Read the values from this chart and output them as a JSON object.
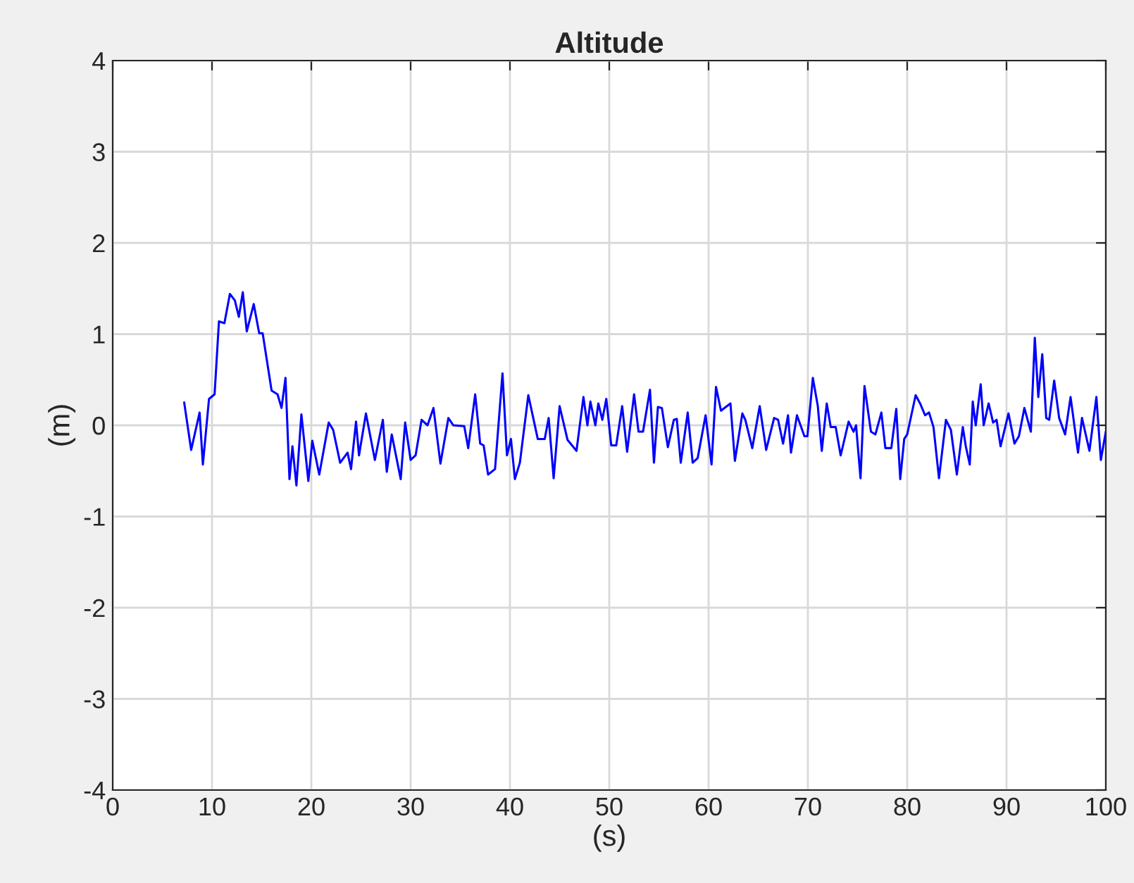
{
  "chart_data": {
    "type": "line",
    "title": "Altitude",
    "xlabel": "(s)",
    "ylabel": "(m)",
    "xlim": [
      0,
      100
    ],
    "xticks": [
      0,
      10,
      20,
      30,
      40,
      50,
      60,
      70,
      80,
      90,
      100
    ],
    "ylim": [
      -4,
      4
    ],
    "yticks": [
      -4,
      -3,
      -2,
      -1,
      0,
      1,
      2,
      3,
      4
    ],
    "grid": true,
    "marker": "none",
    "line_style": "solid",
    "x": [
      7.2,
      7.9,
      8.75,
      9.08,
      9.7,
      10.26,
      10.7,
      11.25,
      11.8,
      12.3,
      12.7,
      13.1,
      13.5,
      14.2,
      14.75,
      15.1,
      16.0,
      16.6,
      17.0,
      17.4,
      17.8,
      18.1,
      18.5,
      19.0,
      19.7,
      20.1,
      20.8,
      21.75,
      22.2,
      22.9,
      23.65,
      24.0,
      24.5,
      24.8,
      25.5,
      26.4,
      27.2,
      27.6,
      28.1,
      29.0,
      29.45,
      30.0,
      30.5,
      31.1,
      31.7,
      32.3,
      33.0,
      33.8,
      34.3,
      35.4,
      35.8,
      36.5,
      37.0,
      37.35,
      37.8,
      38.5,
      39.25,
      39.7,
      40.1,
      40.5,
      41.0,
      41.85,
      42.8,
      43.5,
      43.9,
      44.4,
      45.0,
      45.8,
      46.7,
      47.4,
      47.8,
      48.1,
      48.6,
      48.9,
      49.3,
      49.7,
      50.2,
      50.7,
      51.3,
      51.8,
      52.5,
      52.95,
      53.4,
      54.1,
      54.5,
      54.9,
      55.3,
      55.9,
      56.5,
      56.8,
      57.2,
      57.9,
      58.4,
      58.9,
      59.7,
      60.3,
      60.75,
      61.25,
      62.2,
      62.65,
      63.4,
      63.7,
      64.4,
      65.15,
      65.8,
      66.6,
      67.0,
      67.5,
      68.0,
      68.3,
      68.9,
      69.65,
      69.95,
      70.5,
      71.0,
      71.4,
      71.9,
      72.3,
      72.8,
      73.3,
      74.1,
      74.6,
      74.85,
      75.3,
      75.7,
      76.35,
      76.8,
      77.4,
      77.8,
      78.4,
      78.9,
      79.3,
      79.7,
      80.0,
      80.85,
      81.3,
      81.8,
      82.2,
      82.65,
      83.2,
      83.9,
      84.4,
      85.0,
      85.6,
      85.9,
      86.3,
      86.6,
      86.9,
      87.4,
      87.7,
      88.2,
      88.65,
      89.0,
      89.4,
      90.2,
      90.8,
      91.25,
      91.8,
      92.45,
      92.85,
      93.2,
      93.6,
      94.0,
      94.3,
      94.8,
      95.3,
      95.9,
      96.45,
      97.2,
      97.6,
      98.35,
      99.05,
      99.5,
      100
    ],
    "series": [
      {
        "color": "#0000ff",
        "values": [
          0.25,
          -0.27,
          0.14,
          -0.43,
          0.29,
          0.34,
          1.14,
          1.12,
          1.44,
          1.37,
          1.19,
          1.46,
          1.03,
          1.33,
          1.01,
          1.01,
          0.38,
          0.34,
          0.19,
          0.52,
          -0.59,
          -0.23,
          -0.66,
          0.12,
          -0.61,
          -0.17,
          -0.54,
          0.03,
          -0.05,
          -0.41,
          -0.3,
          -0.48,
          0.04,
          -0.33,
          0.13,
          -0.38,
          0.06,
          -0.51,
          -0.1,
          -0.59,
          0.03,
          -0.38,
          -0.33,
          0.06,
          0.0,
          0.19,
          -0.42,
          0.08,
          0.0,
          -0.01,
          -0.25,
          0.34,
          -0.2,
          -0.22,
          -0.54,
          -0.48,
          0.57,
          -0.33,
          -0.15,
          -0.59,
          -0.41,
          0.33,
          -0.15,
          -0.15,
          0.08,
          -0.58,
          0.21,
          -0.16,
          -0.28,
          0.31,
          0.0,
          0.26,
          0.0,
          0.24,
          0.06,
          0.29,
          -0.22,
          -0.22,
          0.21,
          -0.29,
          0.34,
          -0.07,
          -0.07,
          0.39,
          -0.41,
          0.2,
          0.19,
          -0.24,
          0.06,
          0.07,
          -0.41,
          0.14,
          -0.41,
          -0.36,
          0.11,
          -0.43,
          0.42,
          0.16,
          0.24,
          -0.39,
          0.13,
          0.06,
          -0.25,
          0.21,
          -0.27,
          0.08,
          0.06,
          -0.2,
          0.11,
          -0.3,
          0.11,
          -0.12,
          -0.12,
          0.52,
          0.21,
          -0.28,
          0.24,
          -0.02,
          -0.02,
          -0.33,
          0.04,
          -0.07,
          0.0,
          -0.58,
          0.43,
          -0.07,
          -0.1,
          0.14,
          -0.25,
          -0.25,
          0.18,
          -0.59,
          -0.15,
          -0.1,
          0.33,
          0.24,
          0.11,
          0.14,
          -0.02,
          -0.58,
          0.06,
          -0.05,
          -0.54,
          -0.02,
          -0.23,
          -0.43,
          0.26,
          0.0,
          0.45,
          0.0,
          0.24,
          0.03,
          0.06,
          -0.23,
          0.13,
          -0.2,
          -0.12,
          0.19,
          -0.07,
          0.96,
          0.31,
          0.78,
          0.08,
          0.06,
          0.49,
          0.08,
          -0.1,
          0.31,
          -0.3,
          0.08,
          -0.28,
          0.31,
          -0.38,
          -0.07
        ]
      }
    ]
  }
}
